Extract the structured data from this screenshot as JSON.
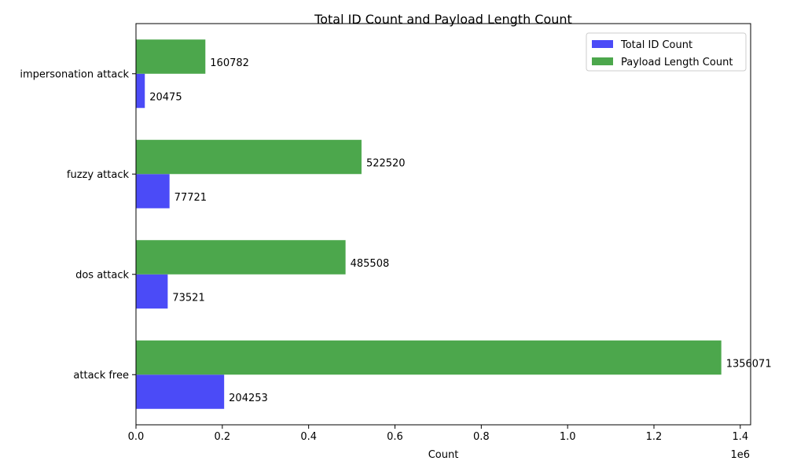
{
  "chart_data": {
    "type": "bar",
    "orientation": "horizontal",
    "title": "Total ID Count and Payload Length Count",
    "xlabel": "Count",
    "ylabel": "",
    "x_offset_label": "1e6",
    "xlim": [
      0,
      1.424
    ],
    "x_ticks": [
      0.0,
      0.2,
      0.4,
      0.6,
      0.8,
      1.0,
      1.2,
      1.4
    ],
    "x_tick_labels": [
      "0.0",
      "0.2",
      "0.4",
      "0.6",
      "0.8",
      "1.0",
      "1.2",
      "1.4"
    ],
    "categories": [
      "attack free",
      "dos attack",
      "fuzzy attack",
      "impersonation attack"
    ],
    "series": [
      {
        "name": "Total ID Count",
        "values": [
          204253,
          73521,
          77721,
          20475
        ],
        "color": "#4b4bf7"
      },
      {
        "name": "Payload Length Count",
        "values": [
          1356071,
          485508,
          522520,
          160782
        ],
        "color": "#4ca74c"
      }
    ],
    "legend_position": "top-right",
    "grid": false
  }
}
